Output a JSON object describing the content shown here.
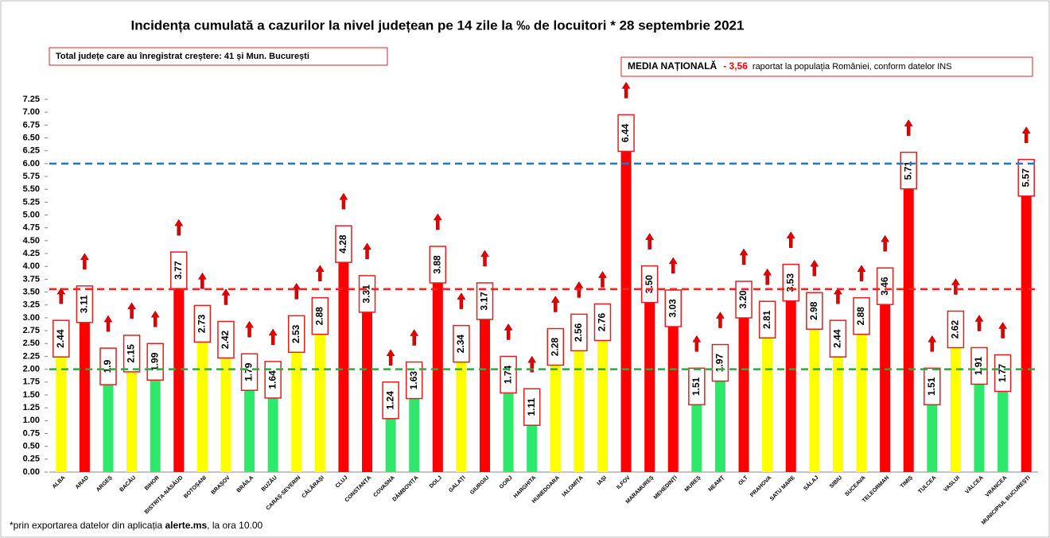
{
  "chart_data": {
    "type": "bar",
    "title": "Incidența cumulată a cazurilor la nivel județean pe 14 zile la ‰ de locuitori * 28 septembrie 2021",
    "annotations": {
      "counties_note": "Total județe care au înregistrat creștere:  41 și Mun. București",
      "national_label": "MEDIA NAȚIONALĂ",
      "national_value": "- 3,56",
      "national_note": "raportat la populația României, conform datelor INS"
    },
    "footer": [
      "*prin exportarea datelor din aplicația ",
      "alerte.ms",
      ", la ora 10.00"
    ],
    "categories": [
      "ALBA",
      "ARAD",
      "ARGEȘ",
      "BACĂU",
      "BIHOR",
      "BISTRIȚA-NĂSĂUD",
      "BOTOȘANI",
      "BRAȘOV",
      "BRĂILA",
      "BUZĂU",
      "CARAȘ-SEVERIN",
      "CĂLĂRAȘI",
      "CLUJ",
      "CONSTANȚA",
      "COVASNA",
      "DÂMBOVIȚA",
      "DOLJ",
      "GALAȚI",
      "GIURGIU",
      "GORJ",
      "HARGHITA",
      "HUNEDOARA",
      "IALOMIȚA",
      "IAȘI",
      "ILFOV",
      "MARAMUREȘ",
      "MEHEDINȚI",
      "MUREȘ",
      "NEAMȚ",
      "OLT",
      "PRAHOVA",
      "SATU MARE",
      "SĂLAJ",
      "SIBIU",
      "SUCEAVA",
      "TELEORMAN",
      "TIMIȘ",
      "TULCEA",
      "VASLUI",
      "VÂLCEA",
      "VRANCEA",
      "MUNICIPIUL BUCUREȘTI"
    ],
    "values": [
      2.44,
      3.11,
      1.9,
      2.15,
      1.99,
      3.77,
      2.73,
      2.42,
      1.79,
      1.64,
      2.53,
      2.88,
      4.28,
      3.31,
      1.24,
      1.63,
      3.88,
      2.34,
      3.17,
      1.74,
      1.11,
      2.28,
      2.56,
      2.76,
      6.44,
      3.5,
      3.03,
      1.51,
      1.97,
      3.2,
      2.81,
      3.53,
      2.98,
      2.44,
      2.88,
      3.46,
      5.71,
      1.51,
      2.62,
      1.91,
      1.77,
      5.57
    ],
    "value_labels": [
      "2.44",
      "3.11",
      "1.9",
      "2.15",
      "1.99",
      "3.77",
      "2.73",
      "2.42",
      "1.79",
      "1.64",
      "2.53",
      "2.88",
      "4.28",
      "3.31",
      "1.24",
      "1.63",
      "3.88",
      "2.34",
      "3.17",
      "1.74",
      "1.11",
      "2.28",
      "2.56",
      "2.76",
      "6.44",
      "3.50",
      "3.03",
      "1.51",
      "1.97",
      "3.20",
      "2.81",
      "3.53",
      "2.98",
      "2.44",
      "2.88",
      "3.46",
      "5.71",
      "1.51",
      "2.62",
      "1.91",
      "1.77",
      "5.57"
    ],
    "colors": [
      "#ffff00",
      "#ff0000",
      "#2ee86b",
      "#ffff00",
      "#2ee86b",
      "#ff0000",
      "#ffff00",
      "#ffff00",
      "#2ee86b",
      "#2ee86b",
      "#ffff00",
      "#ffff00",
      "#ff0000",
      "#ff0000",
      "#2ee86b",
      "#2ee86b",
      "#ff0000",
      "#ffff00",
      "#ff0000",
      "#2ee86b",
      "#2ee86b",
      "#ffff00",
      "#ffff00",
      "#ffff00",
      "#ff0000",
      "#ff0000",
      "#ff0000",
      "#2ee86b",
      "#2ee86b",
      "#ff0000",
      "#ffff00",
      "#ff0000",
      "#ffff00",
      "#ffff00",
      "#ffff00",
      "#ff0000",
      "#ff0000",
      "#2ee86b",
      "#ffff00",
      "#2ee86b",
      "#2ee86b",
      "#ff0000"
    ],
    "reference_lines": [
      {
        "value": 6,
        "color": "#1f78c8"
      },
      {
        "value": 3.56,
        "color": "#ff2020"
      },
      {
        "value": 2,
        "color": "#20b040"
      }
    ],
    "ylim": [
      0,
      7.25
    ],
    "yticks": [
      {
        "value": 0,
        "label": "0.00"
      },
      {
        "value": 0.25,
        "label": "0.25"
      },
      {
        "value": 0.5,
        "label": "0.50"
      },
      {
        "value": 0.75,
        "label": "0.75"
      },
      {
        "value": 1,
        "label": "1.00"
      },
      {
        "value": 1.25,
        "label": "1.25"
      },
      {
        "value": 1.5,
        "label": "1.50"
      },
      {
        "value": 1.75,
        "label": "1.75"
      },
      {
        "value": 2,
        "label": "2.00"
      },
      {
        "value": 2.25,
        "label": "2.25"
      },
      {
        "value": 2.5,
        "label": "2.50"
      },
      {
        "value": 2.75,
        "label": "2.75"
      },
      {
        "value": 3,
        "label": "3.00"
      },
      {
        "value": 3.25,
        "label": "3.25"
      },
      {
        "value": 3.5,
        "label": "3.50"
      },
      {
        "value": 3.75,
        "label": "3.75"
      },
      {
        "value": 4,
        "label": "4.00"
      },
      {
        "value": 4.25,
        "label": "4.25"
      },
      {
        "value": 4.5,
        "label": "4.50"
      },
      {
        "value": 4.75,
        "label": "4.75"
      },
      {
        "value": 5,
        "label": "5.00"
      },
      {
        "value": 5.25,
        "label": "5.25"
      },
      {
        "value": 5.5,
        "label": "5.50"
      },
      {
        "value": 5.75,
        "label": "5.75"
      },
      {
        "value": 6,
        "label": "6.00"
      },
      {
        "value": 6.25,
        "label": "6.25"
      },
      {
        "value": 6.5,
        "label": "6.50"
      },
      {
        "value": 6.75,
        "label": "6.75"
      },
      {
        "value": 7,
        "label": "7.00"
      },
      {
        "value": 7.25,
        "label": "7.25"
      }
    ]
  }
}
